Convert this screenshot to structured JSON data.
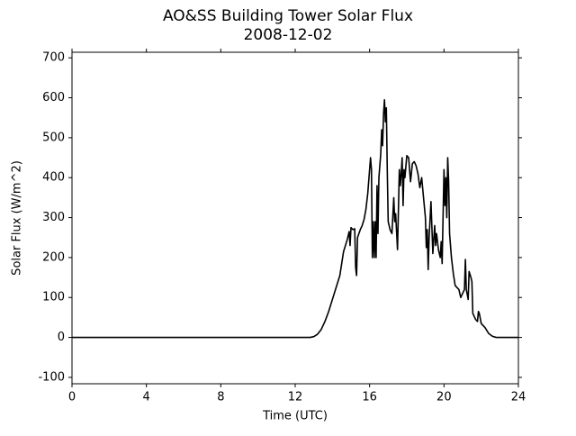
{
  "chart_data": {
    "type": "line",
    "title": "AO&SS Building Tower Solar Flux",
    "subtitle": "2008-12-02",
    "xlabel": "Time (UTC)",
    "ylabel": "Solar Flux (W/m^2)",
    "xlim": [
      0,
      24
    ],
    "xticks": [
      0,
      4,
      8,
      12,
      16,
      20,
      24
    ],
    "ylim": [
      -116,
      714
    ],
    "yticks": [
      -100,
      0,
      100,
      200,
      300,
      400,
      500,
      600,
      700
    ],
    "series": [
      {
        "color": "#000000",
        "x": [
          0,
          12,
          12.8,
          13.0,
          13.2,
          13.4,
          13.6,
          13.8,
          14.0,
          14.2,
          14.4,
          14.5,
          14.6,
          14.8,
          14.9,
          14.95,
          15.0,
          15.1,
          15.2,
          15.25,
          15.3,
          15.35,
          15.5,
          15.6,
          15.7,
          15.8,
          15.9,
          16.0,
          16.05,
          16.1,
          16.15,
          16.2,
          16.25,
          16.3,
          16.35,
          16.4,
          16.45,
          16.5,
          16.6,
          16.65,
          16.7,
          16.75,
          16.8,
          16.85,
          16.9,
          16.95,
          17.0,
          17.1,
          17.2,
          17.3,
          17.35,
          17.4,
          17.5,
          17.6,
          17.65,
          17.7,
          17.75,
          17.8,
          17.85,
          17.9,
          18.0,
          18.1,
          18.2,
          18.3,
          18.4,
          18.5,
          18.6,
          18.7,
          18.8,
          18.9,
          19.0,
          19.05,
          19.1,
          19.15,
          19.2,
          19.3,
          19.4,
          19.5,
          19.55,
          19.6,
          19.7,
          19.8,
          19.85,
          19.9,
          20.0,
          20.05,
          20.1,
          20.15,
          20.2,
          20.25,
          20.3,
          20.4,
          20.5,
          20.6,
          20.7,
          20.8,
          20.9,
          21.0,
          21.1,
          21.15,
          21.2,
          21.3,
          21.35,
          21.45,
          21.5,
          21.55,
          21.7,
          21.8,
          21.85,
          21.9,
          22.0,
          22.1,
          22.2,
          22.4,
          22.6,
          22.8,
          24
        ],
        "values": [
          0,
          0,
          0,
          2,
          8,
          20,
          40,
          65,
          95,
          125,
          155,
          185,
          215,
          245,
          265,
          230,
          275,
          270,
          272,
          175,
          155,
          250,
          270,
          280,
          295,
          320,
          360,
          420,
          450,
          420,
          200,
          290,
          200,
          290,
          200,
          380,
          260,
          400,
          460,
          520,
          480,
          560,
          595,
          540,
          575,
          420,
          290,
          270,
          260,
          350,
          290,
          310,
          220,
          420,
          380,
          410,
          450,
          330,
          420,
          400,
          455,
          450,
          390,
          435,
          440,
          430,
          410,
          375,
          400,
          350,
          300,
          225,
          270,
          170,
          250,
          340,
          210,
          280,
          230,
          260,
          220,
          200,
          240,
          185,
          420,
          330,
          400,
          300,
          450,
          390,
          260,
          200,
          160,
          130,
          125,
          120,
          100,
          110,
          120,
          195,
          120,
          95,
          165,
          150,
          140,
          60,
          45,
          40,
          65,
          60,
          35,
          30,
          25,
          10,
          3,
          0,
          0
        ]
      }
    ]
  }
}
